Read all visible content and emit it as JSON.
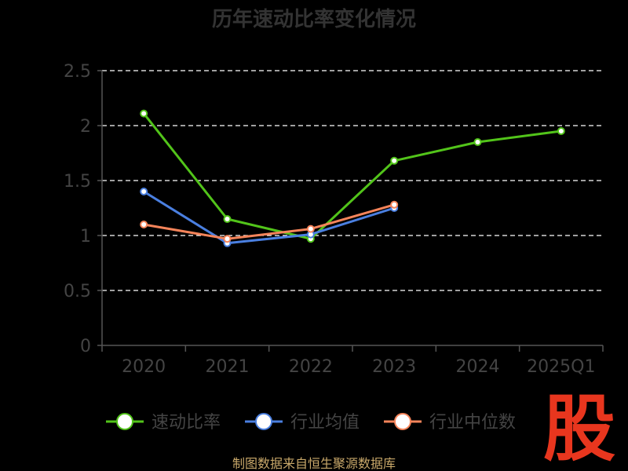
{
  "chart_data": {
    "type": "line",
    "title": "历年速动比率变化情况",
    "categories": [
      "2020",
      "2021",
      "2022",
      "2023",
      "2024",
      "2025Q1"
    ],
    "ylim": [
      0,
      2.5
    ],
    "yticks": [
      "0",
      "0.5",
      "1",
      "1.5",
      "2",
      "2.5"
    ],
    "grid": true,
    "legend_position": "bottom",
    "series": [
      {
        "name": "速动比率",
        "color": "#52c41a",
        "values": [
          2.11,
          1.15,
          0.97,
          1.68,
          1.85,
          1.95
        ]
      },
      {
        "name": "行业均值",
        "color": "#4a7fe0",
        "values": [
          1.4,
          0.93,
          1.01,
          1.25,
          null,
          null
        ]
      },
      {
        "name": "行业中位数",
        "color": "#f5845a",
        "values": [
          1.1,
          0.97,
          1.06,
          1.28,
          null,
          null
        ]
      }
    ]
  },
  "footer": {
    "source": "制图数据来自恒生聚源数据库"
  },
  "logo": {
    "text": "股"
  }
}
